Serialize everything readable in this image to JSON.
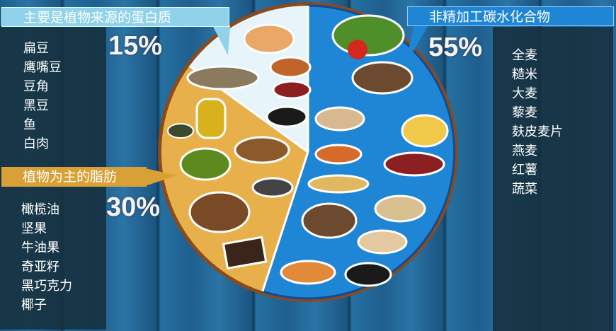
{
  "protein": {
    "title": "主要是植物来源的蛋白质",
    "percent": "15%",
    "items": [
      "扁豆",
      "鹰嘴豆",
      "豆角",
      "黑豆",
      "鱼",
      "白肉"
    ],
    "color": "#8fd2ea"
  },
  "fat": {
    "title": "植物为主的脂肪",
    "percent": "30%",
    "items": [
      "橄榄油",
      "坚果",
      "牛油果",
      "奇亚籽",
      "黑巧克力",
      "椰子"
    ],
    "color": "#d9a036"
  },
  "carbs": {
    "title": "非精加工碳水化合物",
    "percent": "55%",
    "items": [
      "全麦",
      "糙米",
      "大麦",
      "藜麦",
      "麸皮麦片",
      "燕麦",
      "红薯",
      "蔬菜"
    ],
    "color": "#1f86d6"
  },
  "plate": {
    "shares": [
      15,
      30,
      55
    ]
  }
}
